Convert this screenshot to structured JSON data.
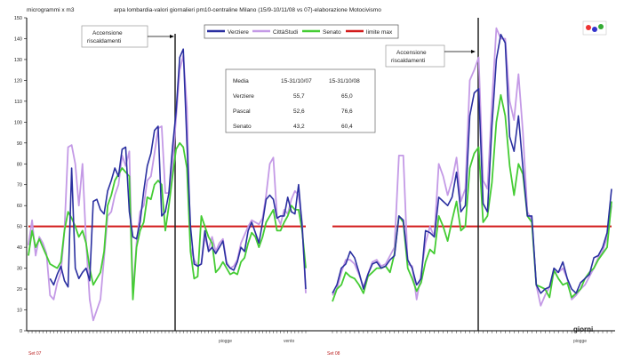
{
  "chart_data": {
    "type": "line",
    "title": "arpa lombardia-valori giornalieri pm10-centraline Milano (15/9-10/11/08 vs 07)-elaborazione Motocivismo",
    "ylabel": "microgrammi x m3",
    "xlabel": "giorni",
    "ylim": [
      0,
      150
    ],
    "yticks": [
      "0",
      "10",
      "20",
      "30",
      "40",
      "50",
      "60",
      "70",
      "80",
      "90",
      "100",
      "110",
      "120",
      "130",
      "140",
      "150"
    ],
    "grid": false,
    "legend_position": "top-center",
    "legend": [
      "Verziere",
      "CittàStudi",
      "Senato",
      "limite max"
    ],
    "colors": {
      "Verziere": "#2a2fa0",
      "CittàStudi": "#c49ae6",
      "Senato": "#44cc33",
      "limite max": "#d21a1a"
    },
    "limit_value": 50,
    "periods": [
      {
        "label": "Set 07",
        "series": [
          {
            "name": "Verziere",
            "values": [
              null,
              null,
              null,
              null,
              null,
              null,
              25,
              22,
              27,
              31,
              24,
              21,
              78,
              30,
              25,
              28,
              30,
              24,
              62,
              63,
              58,
              56,
              67,
              72,
              78,
              74,
              87,
              88,
              57,
              45,
              44,
              52,
              67,
              79,
              85,
              96,
              98,
              55,
              57,
              66,
              88,
              105,
              131,
              135,
              90,
              50,
              32,
              31,
              32,
              48,
              38,
              40,
              37,
              40,
              43,
              32,
              30,
              29,
              33,
              40,
              38,
              48,
              52,
              47,
              42,
              52,
              63,
              65,
              63,
              54,
              55,
              55,
              64,
              57,
              56,
              70,
              50,
              20
            ]
          },
          {
            "name": "CittàStudi",
            "values": [
              41,
              53,
              36,
              45,
              42,
              37,
              17,
              15,
              23,
              28,
              48,
              88,
              89,
              80,
              60,
              80,
              43,
              15,
              5,
              10,
              15,
              35,
              55,
              57,
              65,
              70,
              84,
              79,
              86,
              17,
              42,
              57,
              60,
              72,
              74,
              85,
              97,
              98,
              66,
              66,
              79,
              102,
              125,
              132,
              107,
              40,
              34,
              31,
              32,
              45,
              39,
              45,
              38,
              42,
              44,
              33,
              30,
              31,
              34,
              42,
              46,
              50,
              53,
              52,
              51,
              54,
              65,
              80,
              83,
              55,
              51,
              58,
              56,
              63,
              67,
              65,
              52,
              18
            ]
          },
          {
            "name": "Senato",
            "values": [
              36,
              48,
              40,
              44,
              40,
              36,
              32,
              31,
              30,
              33,
              48,
              57,
              54,
              50,
              45,
              48,
              42,
              30,
              22,
              25,
              28,
              38,
              60,
              65,
              72,
              75,
              78,
              76,
              74,
              15,
              40,
              48,
              52,
              64,
              63,
              70,
              72,
              70,
              48,
              60,
              74,
              87,
              90,
              88,
              78,
              38,
              25,
              26,
              55,
              50,
              45,
              42,
              28,
              30,
              33,
              30,
              27,
              28,
              27,
              33,
              35,
              42,
              47,
              45,
              40,
              45,
              52,
              55,
              58,
              48,
              48,
              52,
              55,
              60,
              58,
              58,
              48,
              30
            ]
          }
        ]
      },
      {
        "label": "Set 08",
        "series": [
          {
            "name": "Verziere",
            "values": [
              18,
              22,
              30,
              32,
              38,
              35,
              28,
              20,
              27,
              32,
              33,
              30,
              31,
              34,
              36,
              55,
              53,
              34,
              30,
              22,
              25,
              48,
              47,
              45,
              64,
              62,
              60,
              64,
              76,
              57,
              60,
              103,
              114,
              116,
              61,
              57,
              98,
              130,
              142,
              138,
              93,
              86,
              103,
              78,
              55,
              55,
              22,
              18,
              20,
              21,
              30,
              28,
              33,
              25,
              20,
              18,
              23,
              25,
              27,
              35,
              36,
              40,
              47,
              68
            ]
          },
          {
            "name": "CittàStudi",
            "values": [
              17,
              20,
              28,
              34,
              34,
              32,
              27,
              21,
              27,
              33,
              34,
              31,
              32,
              36,
              40,
              84,
              84,
              32,
              31,
              15,
              27,
              42,
              50,
              45,
              80,
              74,
              65,
              72,
              83,
              62,
              68,
              120,
              125,
              131,
              72,
              68,
              109,
              145,
              140,
              140,
              110,
              101,
              123,
              95,
              57,
              53,
              22,
              12,
              17,
              21,
              28,
              28,
              30,
              25,
              15,
              17,
              20,
              22,
              26,
              30,
              35,
              38,
              45,
              60
            ]
          },
          {
            "name": "Senato",
            "values": [
              14,
              20,
              22,
              28,
              26,
              25,
              22,
              18,
              26,
              28,
              30,
              30,
              31,
              28,
              37,
              55,
              52,
              30,
              25,
              19,
              23,
              33,
              39,
              37,
              55,
              50,
              43,
              53,
              62,
              48,
              50,
              78,
              85,
              88,
              52,
              55,
              71,
              100,
              113,
              103,
              79,
              65,
              80,
              75,
              55,
              52,
              22,
              21,
              20,
              16,
              29,
              25,
              22,
              23,
              16,
              18,
              20,
              25,
              28,
              30,
              34,
              37,
              40,
              62
            ]
          }
        ]
      }
    ],
    "table": {
      "header": [
        "Media",
        "15-31/10/07",
        "15-31/10/08"
      ],
      "rows": [
        [
          "Verziere",
          "55,7",
          "65,0"
        ],
        [
          "Pascal",
          "52,6",
          "76,6"
        ],
        [
          "Senato",
          "43,2",
          "60,4"
        ]
      ]
    },
    "annotations": [
      {
        "text": [
          "Accensione",
          "riscaldamenti"
        ]
      },
      {
        "text": [
          "Accensione",
          "riscaldamenti"
        ]
      }
    ],
    "x_notes": [
      "piogge",
      "vento",
      "piogge"
    ]
  }
}
